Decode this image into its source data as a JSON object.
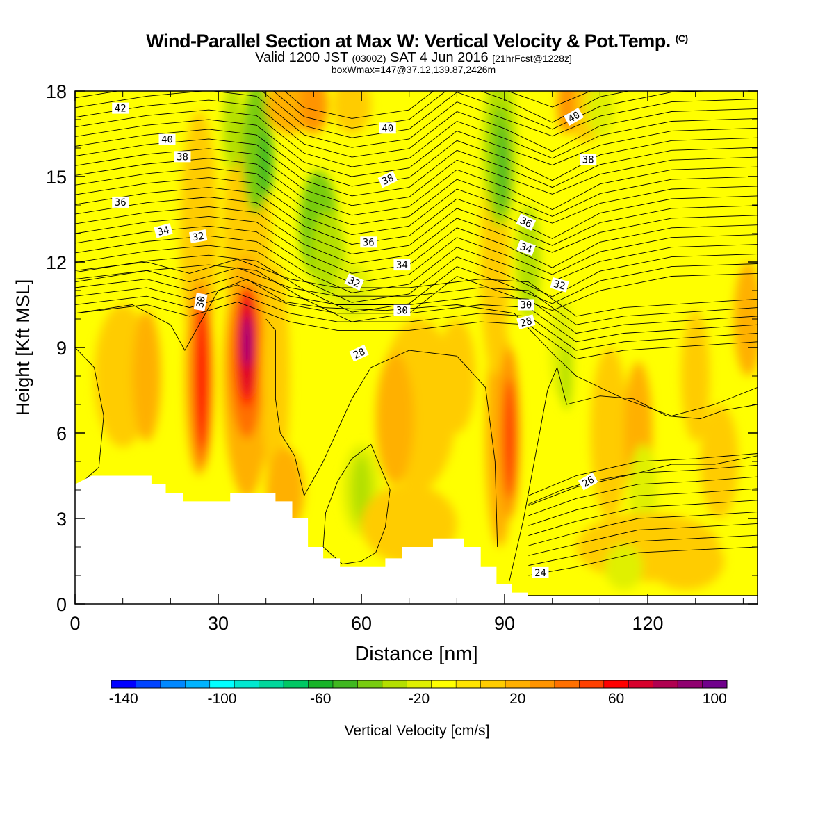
{
  "chart_data": {
    "type": "heatmap",
    "title": {
      "main": "Wind-Parallel Section at Max W: Vertical Velocity & Pot.Temp.",
      "copyright": "(C)",
      "valid_prefix": "Valid 1200 JST",
      "valid_z": "(0300Z)",
      "valid_date": "SAT 4 Jun 2016",
      "forecast": "[21hrFcst@1228z]",
      "box": "boxWmax=147@37.12,139.87,2426m"
    },
    "xlabel": "Distance [nm]",
    "ylabel": "Height [Kft MSL]",
    "xlim": [
      0,
      143
    ],
    "ylim": [
      0,
      18
    ],
    "x_ticks": [
      "0",
      "30",
      "60",
      "90",
      "120"
    ],
    "y_ticks": [
      "0",
      "3",
      "6",
      "9",
      "12",
      "15",
      "18"
    ],
    "colorbar": {
      "label": "Vertical Velocity [cm/s]",
      "tick_labels": [
        "-140",
        "-100",
        "-60",
        "-20",
        "20",
        "60",
        "100"
      ],
      "colors": [
        "#0000ff",
        "#0044ff",
        "#0088ff",
        "#00b4ff",
        "#00ffff",
        "#00e8d0",
        "#00d89c",
        "#00c864",
        "#18b428",
        "#40b820",
        "#78cc10",
        "#b4e000",
        "#e0f000",
        "#ffff00",
        "#ffe400",
        "#ffcc00",
        "#ffb000",
        "#ff9400",
        "#ff7000",
        "#ff4000",
        "#ff0000",
        "#d8002c",
        "#b00050",
        "#900070",
        "#70008c"
      ]
    },
    "terrain_kft": [
      [
        0,
        4.2
      ],
      [
        3.5,
        4.5
      ],
      [
        16,
        4.5
      ],
      [
        16,
        4.2
      ],
      [
        19,
        4.2
      ],
      [
        19,
        3.9
      ],
      [
        22.7,
        3.9
      ],
      [
        22.7,
        3.6
      ],
      [
        32.5,
        3.6
      ],
      [
        32.5,
        3.9
      ],
      [
        42,
        3.9
      ],
      [
        42,
        3.6
      ],
      [
        45.5,
        3.6
      ],
      [
        45.5,
        3.0
      ],
      [
        48.8,
        3.0
      ],
      [
        48.8,
        2.0
      ],
      [
        52,
        2.0
      ],
      [
        52,
        1.6
      ],
      [
        55.5,
        1.6
      ],
      [
        55.5,
        1.3
      ],
      [
        65,
        1.3
      ],
      [
        65,
        1.6
      ],
      [
        68.5,
        1.6
      ],
      [
        68.5,
        2.0
      ],
      [
        75,
        2.0
      ],
      [
        75,
        2.3
      ],
      [
        81.5,
        2.3
      ],
      [
        81.5,
        2.0
      ],
      [
        85,
        2.0
      ],
      [
        85,
        1.3
      ],
      [
        88.3,
        1.3
      ],
      [
        88.3,
        0.7
      ],
      [
        91.5,
        0.7
      ],
      [
        91.5,
        0.4
      ],
      [
        94.8,
        0.4
      ],
      [
        94.8,
        0.3
      ],
      [
        143,
        0.3
      ]
    ],
    "contour_labels": [
      {
        "text": "42",
        "x": 9.5,
        "y": 17.4,
        "rot": 0
      },
      {
        "text": "40",
        "x": 19.3,
        "y": 16.3,
        "rot": 0
      },
      {
        "text": "38",
        "x": 22.5,
        "y": 15.7,
        "rot": 0
      },
      {
        "text": "36",
        "x": 9.5,
        "y": 14.1,
        "rot": 0
      },
      {
        "text": "34",
        "x": 18.5,
        "y": 13.1,
        "rot": -15
      },
      {
        "text": "32",
        "x": 25.8,
        "y": 12.9,
        "rot": -10
      },
      {
        "text": "30",
        "x": 26.3,
        "y": 10.6,
        "rot": -80
      },
      {
        "text": "40",
        "x": 65.5,
        "y": 16.7,
        "rot": 0
      },
      {
        "text": "38",
        "x": 65.5,
        "y": 14.9,
        "rot": -25
      },
      {
        "text": "36",
        "x": 61.5,
        "y": 12.7,
        "rot": 0
      },
      {
        "text": "34",
        "x": 68.5,
        "y": 11.9,
        "rot": 0
      },
      {
        "text": "32",
        "x": 58.5,
        "y": 11.3,
        "rot": 25
      },
      {
        "text": "30",
        "x": 68.5,
        "y": 10.3,
        "rot": 0
      },
      {
        "text": "28",
        "x": 59.5,
        "y": 8.8,
        "rot": -25
      },
      {
        "text": "36",
        "x": 94.5,
        "y": 13.4,
        "rot": 25
      },
      {
        "text": "34",
        "x": 94.5,
        "y": 12.5,
        "rot": 20
      },
      {
        "text": "32",
        "x": 101.5,
        "y": 11.2,
        "rot": 15
      },
      {
        "text": "30",
        "x": 94.5,
        "y": 10.5,
        "rot": 0
      },
      {
        "text": "28",
        "x": 94.5,
        "y": 9.9,
        "rot": -15
      },
      {
        "text": "40",
        "x": 104.5,
        "y": 17.1,
        "rot": -30
      },
      {
        "text": "38",
        "x": 107.5,
        "y": 15.6,
        "rot": 0
      },
      {
        "text": "26",
        "x": 107.5,
        "y": 4.3,
        "rot": -30
      },
      {
        "text": "24",
        "x": 97.5,
        "y": 1.1,
        "rot": 0
      }
    ]
  }
}
